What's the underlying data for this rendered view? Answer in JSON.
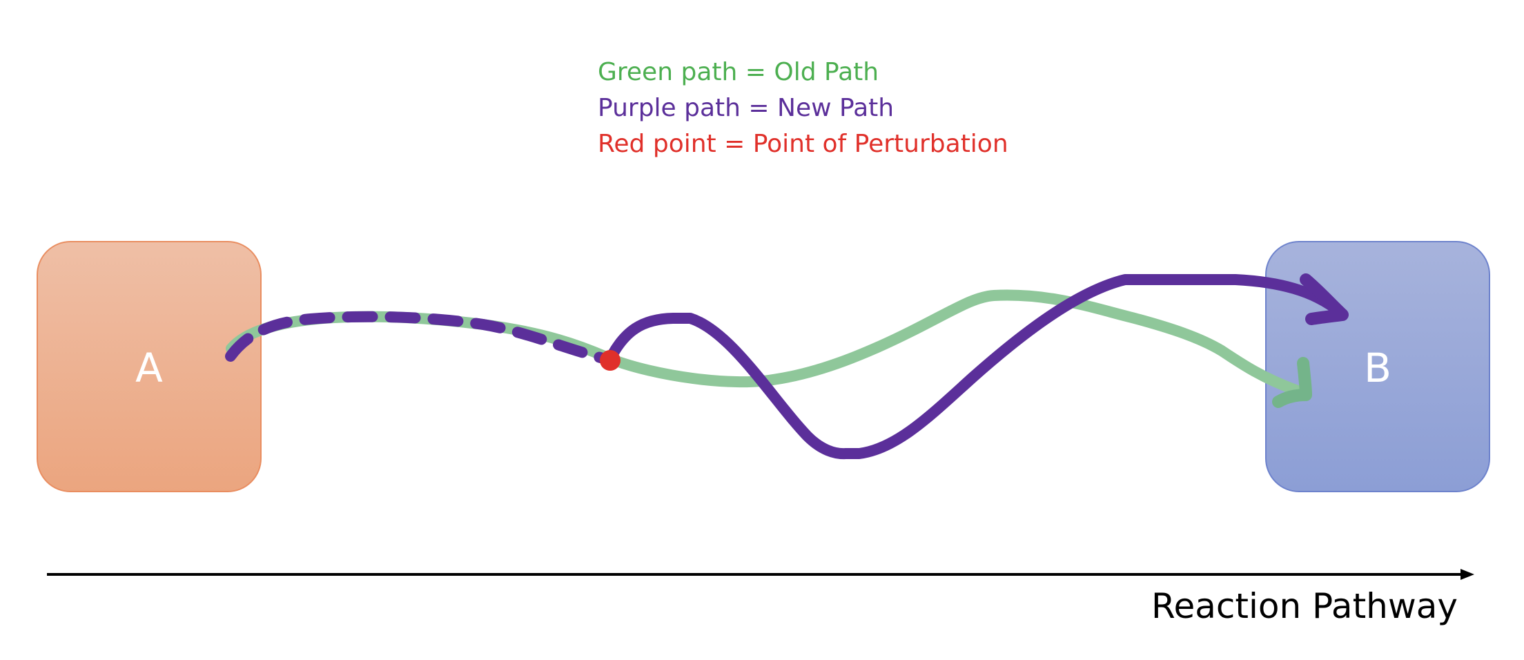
{
  "legend": {
    "old_path": "Green path = Old Path",
    "new_path": "Purple path = New Path",
    "perturbation": "Red point = Point of Perturbation"
  },
  "nodes": {
    "start_label": "A",
    "end_label": "B"
  },
  "axis": {
    "label": "Reaction Pathway"
  },
  "colors": {
    "old_path": "#4caf50",
    "old_path_stroke": "#8fc79a",
    "new_path": "#5b2f9a",
    "perturbation": "#e0302a",
    "start_fill_top": "#efbfa6",
    "start_fill_bottom": "#eba57f",
    "start_border": "#e98d60",
    "end_fill_top": "#a7b3dc",
    "end_fill_bottom": "#8c9ed5",
    "end_border": "#6d82cc",
    "axis": "#000000"
  }
}
